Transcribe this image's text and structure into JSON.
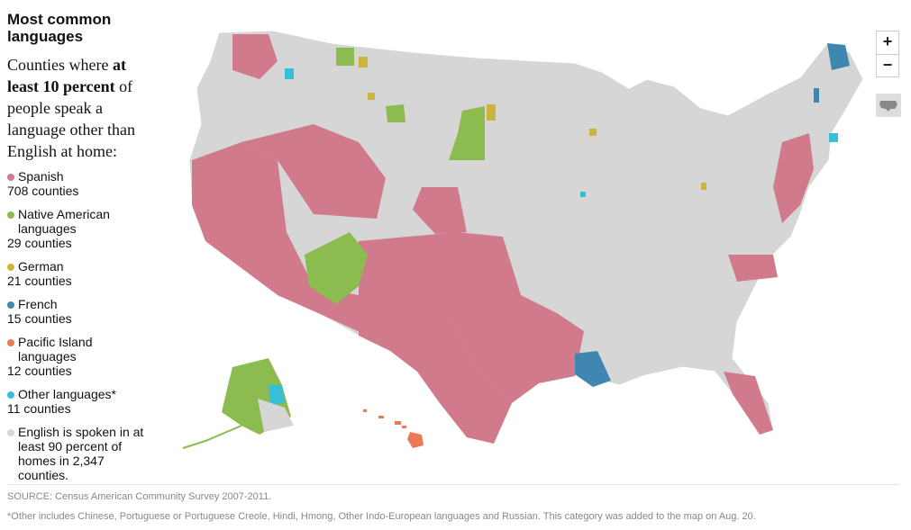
{
  "title": "Most common languages",
  "subtitle": {
    "part1": "Counties where ",
    "bold": "at least 10 percent",
    "part2": " of people speak a language other than English at home:"
  },
  "legend": [
    {
      "label": "Spanish",
      "count": "708 counties",
      "color": "#d07a8c"
    },
    {
      "label": "Native American languages",
      "count": "29 counties",
      "color": "#8cbb4f"
    },
    {
      "label": "German",
      "count": "21 counties",
      "color": "#cdb43f"
    },
    {
      "label": "French",
      "count": "15 counties",
      "color": "#3f87b1"
    },
    {
      "label": "Pacific Island languages",
      "count": "12 counties",
      "color": "#ec7955"
    },
    {
      "label": "Other languages*",
      "count": "11 counties",
      "color": "#37bfd8"
    },
    {
      "label": "English is spoken in at least 90 percent of homes in 2,347 counties.",
      "count": "",
      "color": "#d6d6d6"
    }
  ],
  "map_controls": {
    "zoom_in": "+",
    "zoom_out": "−",
    "reset_icon": "us-map-icon"
  },
  "source": "SOURCE: Census American Community Survey 2007-2011.",
  "footnote": "*Other includes Chinese, Portuguese or Portuguese Creole, Hindi, Hmong, Other Indo-European languages and Russian. This category was added to the map on Aug. 20."
}
